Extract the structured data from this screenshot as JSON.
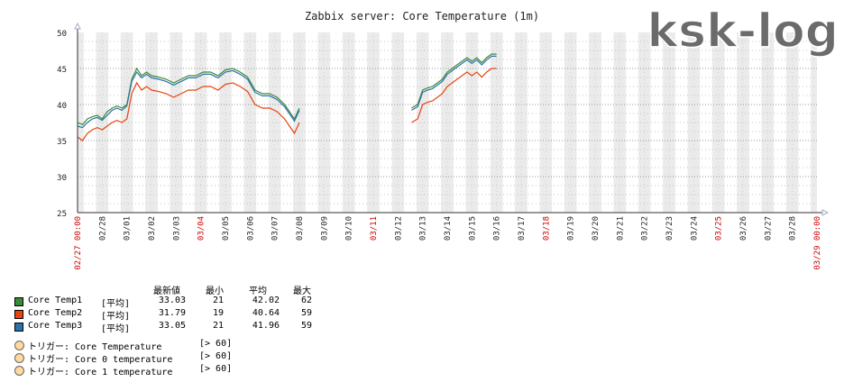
{
  "chart_data": {
    "type": "line",
    "title": "Zabbix server: Core Temperature (1m)",
    "ylim": [
      25,
      50
    ],
    "y_ticks": [
      25,
      30,
      35,
      40,
      45,
      50
    ],
    "x_labels": [
      {
        "label": "02/27 00:00",
        "red": true
      },
      {
        "label": "02/28",
        "red": false
      },
      {
        "label": "03/01",
        "red": false
      },
      {
        "label": "03/02",
        "red": false
      },
      {
        "label": "03/03",
        "red": false
      },
      {
        "label": "03/04",
        "red": true
      },
      {
        "label": "03/05",
        "red": false
      },
      {
        "label": "03/06",
        "red": false
      },
      {
        "label": "03/07",
        "red": false
      },
      {
        "label": "03/08",
        "red": false
      },
      {
        "label": "03/09",
        "red": false
      },
      {
        "label": "03/10",
        "red": false
      },
      {
        "label": "03/11",
        "red": true
      },
      {
        "label": "03/12",
        "red": false
      },
      {
        "label": "03/13",
        "red": false
      },
      {
        "label": "03/14",
        "red": false
      },
      {
        "label": "03/15",
        "red": false
      },
      {
        "label": "03/16",
        "red": false
      },
      {
        "label": "03/17",
        "red": false
      },
      {
        "label": "03/18",
        "red": true
      },
      {
        "label": "03/19",
        "red": false
      },
      {
        "label": "03/20",
        "red": false
      },
      {
        "label": "03/21",
        "red": false
      },
      {
        "label": "03/22",
        "red": false
      },
      {
        "label": "03/23",
        "red": false
      },
      {
        "label": "03/24",
        "red": false
      },
      {
        "label": "03/25",
        "red": true
      },
      {
        "label": "03/26",
        "red": false
      },
      {
        "label": "03/27",
        "red": false
      },
      {
        "label": "03/28",
        "red": false
      },
      {
        "label": "03/29 00:00",
        "red": true
      }
    ],
    "series": [
      {
        "name": "Core Temp1",
        "color": "#3c8a3c",
        "segments": [
          [
            [
              0.0,
              37.5
            ],
            [
              0.2,
              37.2
            ],
            [
              0.4,
              38.0
            ],
            [
              0.6,
              38.3
            ],
            [
              0.8,
              38.5
            ],
            [
              1.0,
              38.0
            ],
            [
              1.2,
              39.0
            ],
            [
              1.4,
              39.5
            ],
            [
              1.6,
              39.8
            ],
            [
              1.8,
              39.5
            ],
            [
              2.0,
              40.0
            ],
            [
              2.2,
              43.5
            ],
            [
              2.4,
              45.0
            ],
            [
              2.6,
              44.0
            ],
            [
              2.8,
              44.5
            ],
            [
              3.0,
              44.0
            ],
            [
              3.3,
              43.8
            ],
            [
              3.6,
              43.5
            ],
            [
              3.9,
              43.0
            ],
            [
              4.2,
              43.5
            ],
            [
              4.5,
              44.0
            ],
            [
              4.8,
              44.0
            ],
            [
              5.1,
              44.5
            ],
            [
              5.4,
              44.5
            ],
            [
              5.7,
              44.0
            ],
            [
              6.0,
              44.8
            ],
            [
              6.3,
              45.0
            ],
            [
              6.6,
              44.5
            ],
            [
              6.9,
              43.8
            ],
            [
              7.2,
              42.0
            ],
            [
              7.5,
              41.5
            ],
            [
              7.8,
              41.5
            ],
            [
              8.1,
              41.0
            ],
            [
              8.4,
              40.0
            ],
            [
              8.6,
              39.0
            ],
            [
              8.8,
              38.0
            ],
            [
              9.0,
              39.5
            ]
          ],
          [
            [
              13.55,
              39.5
            ],
            [
              13.8,
              40.0
            ],
            [
              14.0,
              42.0
            ],
            [
              14.2,
              42.3
            ],
            [
              14.4,
              42.5
            ],
            [
              14.6,
              43.0
            ],
            [
              14.8,
              43.5
            ],
            [
              15.0,
              44.5
            ],
            [
              15.2,
              45.0
            ],
            [
              15.4,
              45.5
            ],
            [
              15.6,
              46.0
            ],
            [
              15.8,
              46.5
            ],
            [
              16.0,
              46.0
            ],
            [
              16.2,
              46.5
            ],
            [
              16.4,
              45.8
            ],
            [
              16.6,
              46.5
            ],
            [
              16.8,
              47.0
            ],
            [
              17.0,
              47.0
            ]
          ]
        ]
      },
      {
        "name": "Core Temp2",
        "color": "#e8440f",
        "segments": [
          [
            [
              0.0,
              35.5
            ],
            [
              0.2,
              35.0
            ],
            [
              0.4,
              36.0
            ],
            [
              0.6,
              36.5
            ],
            [
              0.8,
              36.8
            ],
            [
              1.0,
              36.5
            ],
            [
              1.2,
              37.0
            ],
            [
              1.4,
              37.5
            ],
            [
              1.6,
              37.8
            ],
            [
              1.8,
              37.5
            ],
            [
              2.0,
              38.0
            ],
            [
              2.2,
              41.5
            ],
            [
              2.4,
              43.0
            ],
            [
              2.6,
              42.0
            ],
            [
              2.8,
              42.5
            ],
            [
              3.0,
              42.0
            ],
            [
              3.3,
              41.8
            ],
            [
              3.6,
              41.5
            ],
            [
              3.9,
              41.0
            ],
            [
              4.2,
              41.5
            ],
            [
              4.5,
              42.0
            ],
            [
              4.8,
              42.0
            ],
            [
              5.1,
              42.5
            ],
            [
              5.4,
              42.5
            ],
            [
              5.7,
              42.0
            ],
            [
              6.0,
              42.8
            ],
            [
              6.3,
              43.0
            ],
            [
              6.6,
              42.5
            ],
            [
              6.9,
              41.8
            ],
            [
              7.2,
              40.0
            ],
            [
              7.5,
              39.5
            ],
            [
              7.8,
              39.5
            ],
            [
              8.1,
              39.0
            ],
            [
              8.4,
              38.0
            ],
            [
              8.6,
              37.0
            ],
            [
              8.8,
              36.0
            ],
            [
              9.0,
              37.5
            ]
          ],
          [
            [
              13.55,
              37.5
            ],
            [
              13.8,
              38.0
            ],
            [
              14.0,
              40.0
            ],
            [
              14.2,
              40.3
            ],
            [
              14.4,
              40.5
            ],
            [
              14.6,
              41.0
            ],
            [
              14.8,
              41.5
            ],
            [
              15.0,
              42.5
            ],
            [
              15.2,
              43.0
            ],
            [
              15.4,
              43.5
            ],
            [
              15.6,
              44.0
            ],
            [
              15.8,
              44.5
            ],
            [
              16.0,
              44.0
            ],
            [
              16.2,
              44.5
            ],
            [
              16.4,
              43.8
            ],
            [
              16.6,
              44.5
            ],
            [
              16.8,
              45.0
            ],
            [
              17.0,
              45.0
            ]
          ]
        ]
      },
      {
        "name": "Core Temp3",
        "color": "#2e73a8",
        "segments": [
          [
            [
              0.0,
              37.0
            ],
            [
              0.2,
              36.8
            ],
            [
              0.4,
              37.5
            ],
            [
              0.6,
              38.0
            ],
            [
              0.8,
              38.2
            ],
            [
              1.0,
              37.8
            ],
            [
              1.2,
              38.5
            ],
            [
              1.4,
              39.2
            ],
            [
              1.6,
              39.5
            ],
            [
              1.8,
              39.2
            ],
            [
              2.0,
              39.8
            ],
            [
              2.2,
              43.2
            ],
            [
              2.4,
              44.5
            ],
            [
              2.6,
              43.7
            ],
            [
              2.8,
              44.2
            ],
            [
              3.0,
              43.7
            ],
            [
              3.3,
              43.5
            ],
            [
              3.6,
              43.2
            ],
            [
              3.9,
              42.7
            ],
            [
              4.2,
              43.2
            ],
            [
              4.5,
              43.7
            ],
            [
              4.8,
              43.7
            ],
            [
              5.1,
              44.2
            ],
            [
              5.4,
              44.2
            ],
            [
              5.7,
              43.7
            ],
            [
              6.0,
              44.5
            ],
            [
              6.3,
              44.7
            ],
            [
              6.6,
              44.2
            ],
            [
              6.9,
              43.5
            ],
            [
              7.2,
              41.7
            ],
            [
              7.5,
              41.2
            ],
            [
              7.8,
              41.2
            ],
            [
              8.1,
              40.7
            ],
            [
              8.4,
              39.7
            ],
            [
              8.6,
              38.7
            ],
            [
              8.8,
              37.7
            ],
            [
              9.0,
              39.2
            ]
          ],
          [
            [
              13.55,
              39.2
            ],
            [
              13.8,
              39.7
            ],
            [
              14.0,
              41.7
            ],
            [
              14.2,
              42.0
            ],
            [
              14.4,
              42.2
            ],
            [
              14.6,
              42.7
            ],
            [
              14.8,
              43.2
            ],
            [
              15.0,
              44.2
            ],
            [
              15.2,
              44.7
            ],
            [
              15.4,
              45.2
            ],
            [
              15.6,
              45.7
            ],
            [
              15.8,
              46.2
            ],
            [
              16.0,
              45.7
            ],
            [
              16.2,
              46.2
            ],
            [
              16.4,
              45.5
            ],
            [
              16.6,
              46.2
            ],
            [
              16.8,
              46.7
            ],
            [
              17.0,
              46.7
            ]
          ]
        ]
      }
    ],
    "legend": {
      "headers": [
        "最新値",
        "最小",
        "平均",
        "最大"
      ],
      "rows": [
        {
          "name": "Core Temp1",
          "func": "[平均]",
          "last": "33.03",
          "min": "21",
          "avg": "42.02",
          "max": "62",
          "color": "#3c8a3c"
        },
        {
          "name": "Core Temp2",
          "func": "[平均]",
          "last": "31.79",
          "min": "19",
          "avg": "40.64",
          "max": "59",
          "color": "#e8440f"
        },
        {
          "name": "Core Temp3",
          "func": "[平均]",
          "last": "33.05",
          "min": "21",
          "avg": "41.96",
          "max": "59",
          "color": "#2e73a8"
        }
      ],
      "triggers": [
        {
          "label": "トリガー: Core Temperature",
          "value": "[> 60]"
        },
        {
          "label": "トリガー: Core 0 temperature",
          "value": "[> 60]"
        },
        {
          "label": "トリガー: Core 1 temperature",
          "value": "[> 60]"
        }
      ]
    },
    "grid": true
  },
  "watermark": "ksk-log"
}
